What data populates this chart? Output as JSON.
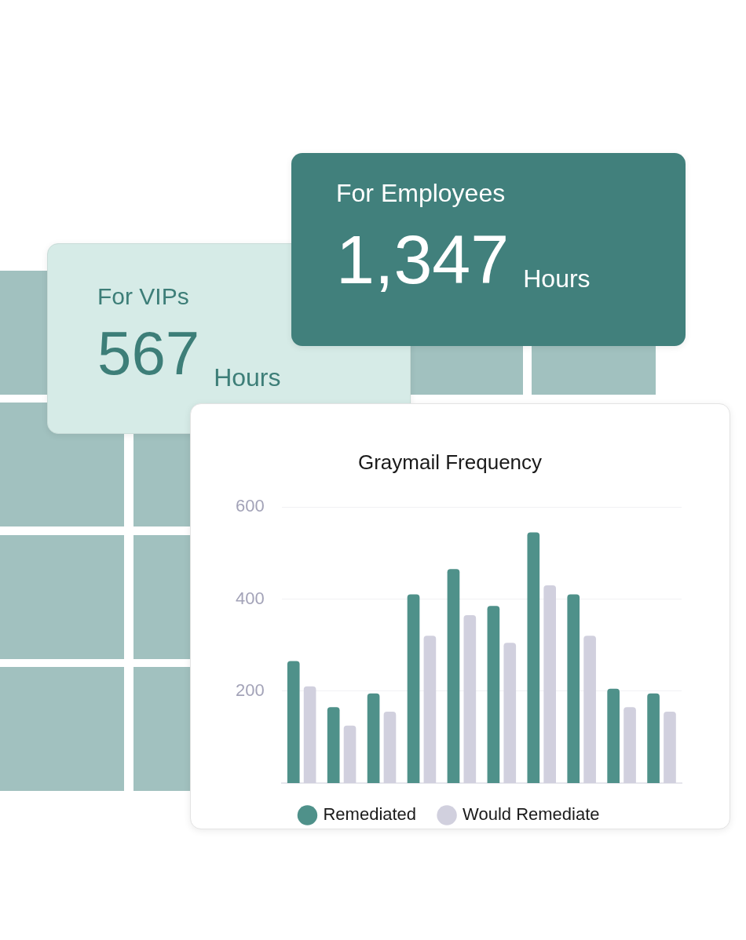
{
  "chart_data": [
    {
      "type": "other",
      "title": "For Employees",
      "annotations": [
        "1,347",
        "Hours"
      ]
    },
    {
      "type": "other",
      "title": "For VIPs",
      "annotations": [
        "567",
        "Hours"
      ]
    },
    {
      "type": "bar",
      "title": "Graymail Frequency",
      "categories": [
        null,
        null,
        null,
        null,
        null,
        null,
        null,
        null,
        null,
        null
      ],
      "series": [
        {
          "name": "Remediated",
          "color": "#4f918a",
          "values": [
            265,
            165,
            195,
            410,
            465,
            385,
            545,
            410,
            205,
            195
          ]
        },
        {
          "name": "Would Remediate",
          "color": "#d1d0de",
          "values": [
            210,
            125,
            155,
            320,
            365,
            305,
            430,
            320,
            165,
            155
          ]
        }
      ],
      "ylim": [
        0,
        600
      ],
      "yticks": [
        200,
        400,
        600
      ],
      "grid": "y",
      "legend": "bottom"
    }
  ]
}
